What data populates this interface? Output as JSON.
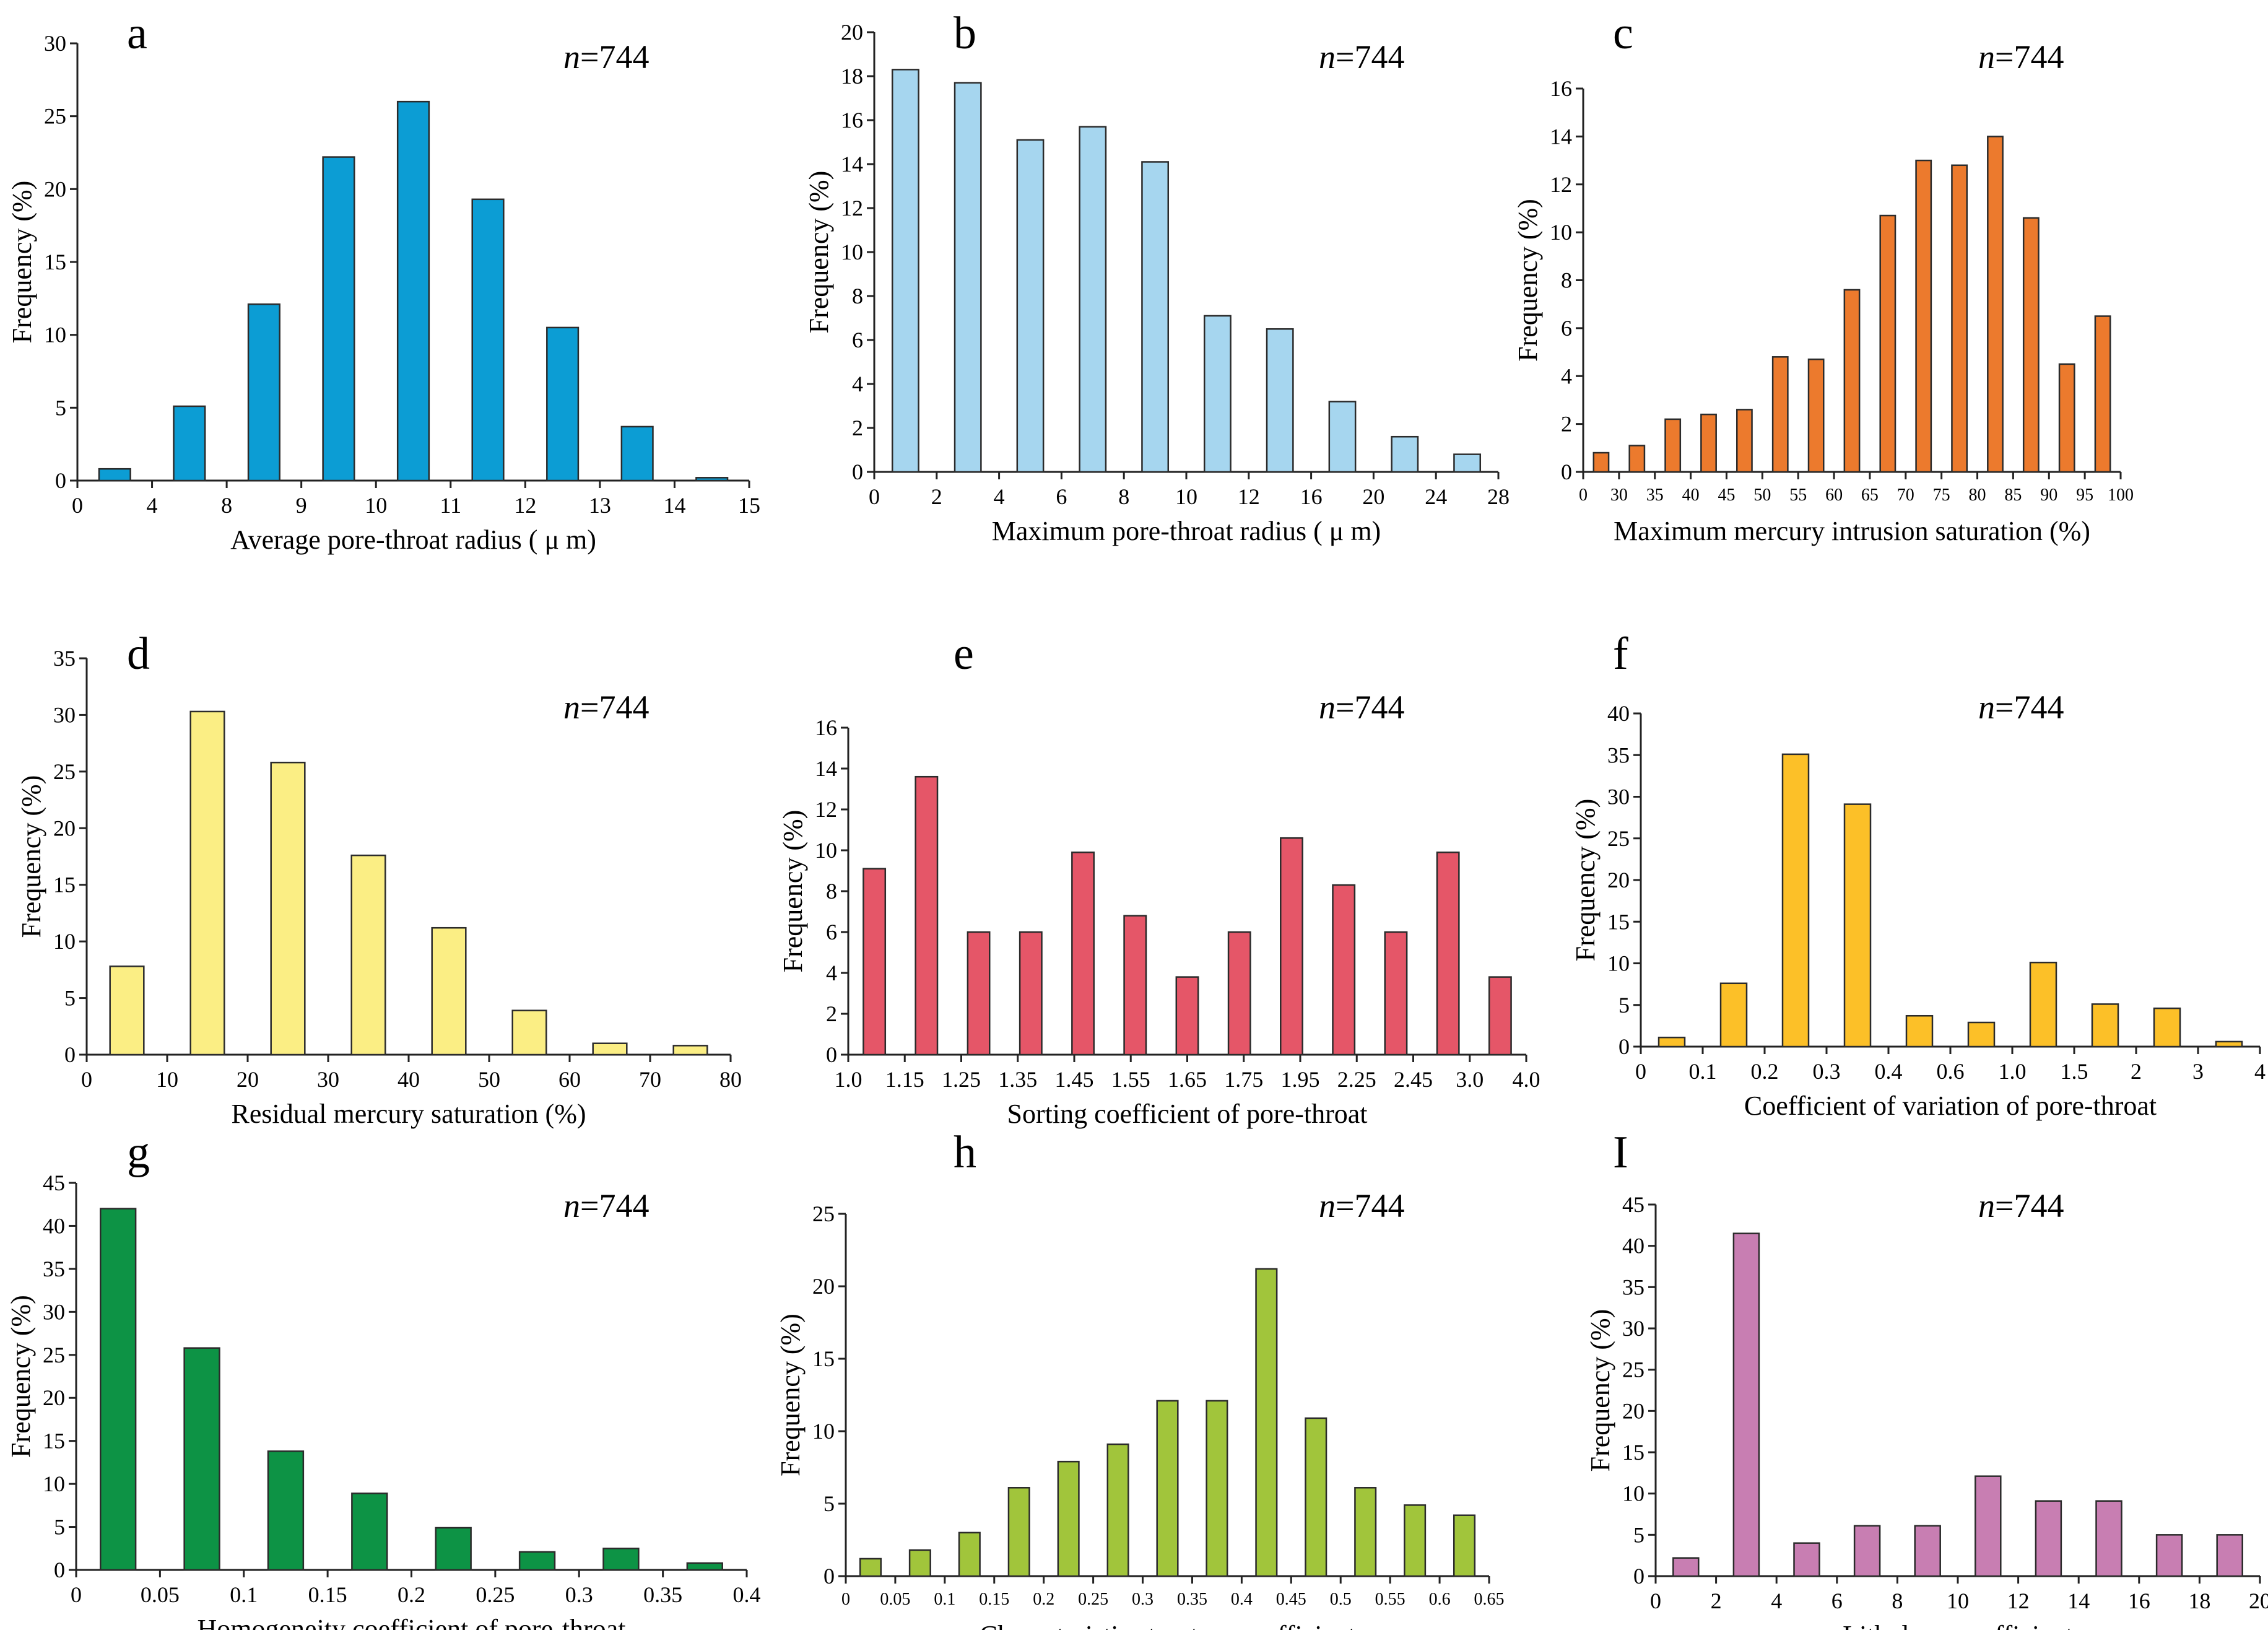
{
  "figure_title": "",
  "chart_data": [
    {
      "panel": "a",
      "type": "bar",
      "n_label": "744",
      "xlabel": "Average pore-throat radius ( μ m)",
      "ylabel": "Frequency (%)",
      "ylim": [
        0,
        30
      ],
      "yticks": [
        "0",
        "5",
        "10",
        "15",
        "20",
        "25",
        "30"
      ],
      "xticks": [
        "0",
        "4",
        "8",
        "9",
        "10",
        "11",
        "12",
        "13",
        "14",
        "15"
      ],
      "values": [
        0.8,
        5.1,
        12.1,
        22.2,
        26.0,
        19.3,
        10.5,
        3.7,
        0.2
      ],
      "color": "#0c9dd4"
    },
    {
      "panel": "b",
      "type": "bar",
      "n_label": "744",
      "xlabel": "Maximum pore-throat radius ( μ m)",
      "ylabel": "Frequency (%)",
      "ylim": [
        0,
        20
      ],
      "yticks": [
        "0",
        "2",
        "4",
        "6",
        "8",
        "10",
        "12",
        "14",
        "16",
        "18",
        "20"
      ],
      "xticks": [
        "0",
        "2",
        "4",
        "6",
        "8",
        "10",
        "12",
        "16",
        "20",
        "24",
        "28"
      ],
      "values": [
        18.3,
        17.7,
        15.1,
        15.7,
        14.1,
        7.1,
        6.5,
        3.2,
        1.6,
        0.8
      ],
      "color": "#a6d6ef"
    },
    {
      "panel": "c",
      "type": "bar",
      "n_label": "744",
      "xlabel": "Maximum mercury intrusion saturation (%)",
      "ylabel": "Frequency (%)",
      "ylim": [
        0,
        16
      ],
      "yticks": [
        "0",
        "2",
        "4",
        "6",
        "8",
        "10",
        "12",
        "14",
        "16"
      ],
      "xticks": [
        "0",
        "30",
        "35",
        "40",
        "45",
        "50",
        "55",
        "60",
        "65",
        "70",
        "75",
        "80",
        "85",
        "90",
        "95",
        "100"
      ],
      "values": [
        0.8,
        1.1,
        2.2,
        2.4,
        2.6,
        4.8,
        4.7,
        7.6,
        10.7,
        13.0,
        12.8,
        14.0,
        10.6,
        4.5,
        6.5
      ],
      "color": "#ec7a2d"
    },
    {
      "panel": "d",
      "type": "bar",
      "n_label": "744",
      "xlabel": "Residual mercury saturation (%)",
      "ylabel": "Frequency (%)",
      "ylim": [
        0,
        35
      ],
      "yticks": [
        "0",
        "5",
        "10",
        "15",
        "20",
        "25",
        "30",
        "35"
      ],
      "xticks": [
        "0",
        "10",
        "20",
        "30",
        "40",
        "50",
        "60",
        "70",
        "80"
      ],
      "values": [
        7.8,
        30.3,
        25.8,
        17.6,
        11.2,
        3.9,
        1.0,
        0.8
      ],
      "color": "#fbee84"
    },
    {
      "panel": "e",
      "type": "bar",
      "n_label": "744",
      "xlabel": "Sorting coefficient of pore-throat",
      "ylabel": "Frequency (%)",
      "ylim": [
        0,
        16
      ],
      "yticks": [
        "0",
        "2",
        "4",
        "6",
        "8",
        "10",
        "12",
        "14",
        "16"
      ],
      "xticks": [
        "1.0",
        "1.15",
        "1.25",
        "1.35",
        "1.45",
        "1.55",
        "1.65",
        "1.75",
        "1.95",
        "2.25",
        "2.45",
        "3.0",
        "4.0"
      ],
      "values": [
        9.1,
        13.6,
        6.0,
        6.0,
        9.9,
        6.8,
        3.8,
        6.0,
        10.6,
        8.3,
        6.0,
        9.9,
        3.8
      ],
      "color": "#e55668"
    },
    {
      "panel": "f",
      "type": "bar",
      "n_label": "744",
      "xlabel": "Coefficient of variation of pore-throat",
      "ylabel": "Frequency (%)",
      "ylim": [
        0,
        40
      ],
      "yticks": [
        "0",
        "5",
        "10",
        "15",
        "20",
        "25",
        "30",
        "35",
        "40"
      ],
      "xticks": [
        "0",
        "0.1",
        "0.2",
        "0.3",
        "0.4",
        "0.6",
        "1.0",
        "1.5",
        "2",
        "3",
        "4"
      ],
      "values": [
        1.1,
        7.6,
        35.1,
        29.1,
        3.7,
        2.9,
        10.1,
        5.1,
        4.6,
        0.6
      ],
      "color": "#fcc028"
    },
    {
      "panel": "g",
      "type": "bar",
      "n_label": "744",
      "xlabel": "Homogeneity coefficient of pore-throat",
      "ylabel": "Frequency (%)",
      "ylim": [
        0,
        45
      ],
      "yticks": [
        "0",
        "5",
        "10",
        "15",
        "20",
        "25",
        "30",
        "35",
        "40",
        "45"
      ],
      "xticks": [
        "0",
        "0.05",
        "0.1",
        "0.15",
        "0.2",
        "0.25",
        "0.3",
        "0.35",
        "0.4"
      ],
      "values": [
        42.0,
        25.8,
        13.8,
        8.9,
        4.9,
        2.1,
        2.5,
        0.8
      ],
      "color": "#0d9345"
    },
    {
      "panel": "h",
      "type": "bar",
      "n_label": "744",
      "xlabel": "Characteristic structure coefficient",
      "ylabel": "Frequency (%)",
      "ylim": [
        0,
        25
      ],
      "yticks": [
        "0",
        "5",
        "10",
        "15",
        "20",
        "25"
      ],
      "xticks": [
        "0",
        "0.05",
        "0.1",
        "0.15",
        "0.2",
        "0.25",
        "0.3",
        "0.35",
        "0.4",
        "0.45",
        "0.5",
        "0.55",
        "0.6",
        "0.65"
      ],
      "values": [
        1.2,
        1.8,
        3.0,
        6.1,
        7.9,
        9.1,
        12.1,
        12.1,
        21.2,
        10.9,
        6.1,
        4.9,
        4.2
      ],
      "color": "#a1c53b"
    },
    {
      "panel": "I",
      "type": "bar",
      "n_label": "744",
      "xlabel": "Lithology coefficient",
      "ylabel": "Frequency (%)",
      "ylim": [
        0,
        45
      ],
      "yticks": [
        "0",
        "5",
        "10",
        "15",
        "20",
        "25",
        "30",
        "35",
        "40",
        "45"
      ],
      "xticks": [
        "0",
        "2",
        "4",
        "6",
        "8",
        "10",
        "12",
        "14",
        "16",
        "18",
        "20"
      ],
      "values": [
        2.2,
        41.5,
        4.0,
        6.1,
        6.1,
        12.1,
        9.1,
        9.1,
        5.0,
        5.0
      ],
      "color": "#c87eb2"
    }
  ]
}
